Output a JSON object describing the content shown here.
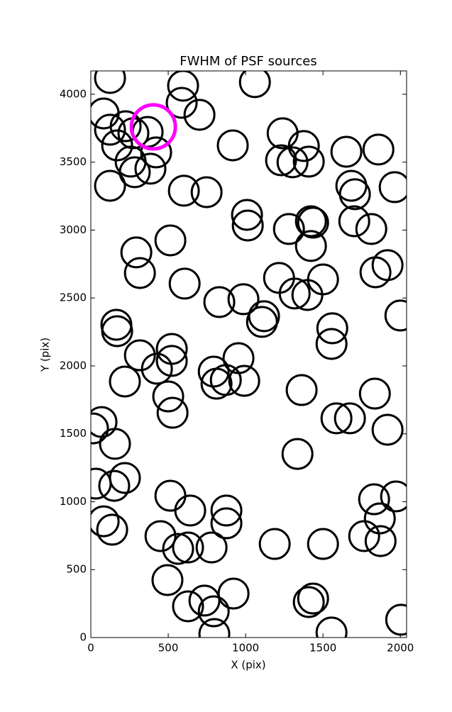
{
  "chart_data": {
    "type": "scatter",
    "title": "FWHM of PSF sources",
    "xlabel": "X (pix)",
    "ylabel": "Y (pix)",
    "xlim": [
      0,
      2040
    ],
    "ylim": [
      0,
      4172
    ],
    "xticks": [
      0,
      500,
      1000,
      1500,
      2000
    ],
    "yticks": [
      0,
      500,
      1000,
      1500,
      2000,
      2500,
      3000,
      3500,
      4000
    ],
    "series": [
      {
        "color": "#000000",
        "x": [
          124,
          596,
          1060,
          587,
          702,
          83,
          124,
          225,
          275,
          367,
          170,
          422,
          257,
          284,
          385,
          124,
          601,
          748,
          917,
          1239,
          1376,
          1229,
          1303,
          1408,
          1858,
          1651,
          1683,
          1706,
          1963,
          1009,
          1014,
          1280,
          1422,
          1436,
          1702,
          1812,
          1422,
          514,
          294,
          317,
          606,
          1216,
          1317,
          1399,
          1500,
          1839,
          1917,
          830,
          986,
          1119,
          1106,
          1560,
          1555,
          2000,
          165,
          170,
          317,
          523,
          523,
          427,
          220,
          954,
          794,
          812,
          872,
          991,
          1362,
          1835,
          500,
          528,
          69,
          14,
          156,
          1587,
          1674,
          1917,
          1335,
          220,
          151,
          32,
          514,
          642,
          876,
          876,
          1830,
          1972,
          1867,
          83,
          138,
          450,
          564,
          628,
          780,
          1188,
          1500,
          1766,
          1872,
          495,
          734,
          794,
          628,
          922,
          1436,
          1408,
          1555,
          798,
          2005
        ],
        "values": [
          4120,
          4063,
          4089,
          3937,
          3849,
          3859,
          3739,
          3765,
          3713,
          3723,
          3624,
          3572,
          3504,
          3426,
          3452,
          3326,
          3290,
          3279,
          3624,
          3713,
          3619,
          3514,
          3499,
          3504,
          3593,
          3577,
          3326,
          3264,
          3316,
          3112,
          3034,
          3008,
          3065,
          3055,
          3065,
          3008,
          2883,
          2924,
          2836,
          2684,
          2606,
          2648,
          2533,
          2522,
          2637,
          2689,
          2742,
          2470,
          2491,
          2366,
          2324,
          2277,
          2162,
          2371,
          2303,
          2256,
          2078,
          2125,
          2037,
          1979,
          1885,
          2057,
          1958,
          1869,
          1896,
          1890,
          1822,
          1796,
          1775,
          1655,
          1587,
          1540,
          1426,
          1614,
          1614,
          1530,
          1352,
          1175,
          1117,
          1133,
          1044,
          935,
          935,
          841,
          1018,
          1039,
          877,
          856,
          794,
          747,
          653,
          663,
          663,
          689,
          689,
          747,
          710,
          423,
          272,
          193,
          230,
          324,
          287,
          261,
          37,
          26,
          131
        ]
      },
      {
        "color": "#ff00ff",
        "x": [
          404
        ],
        "values": [
          3760
        ]
      }
    ]
  }
}
